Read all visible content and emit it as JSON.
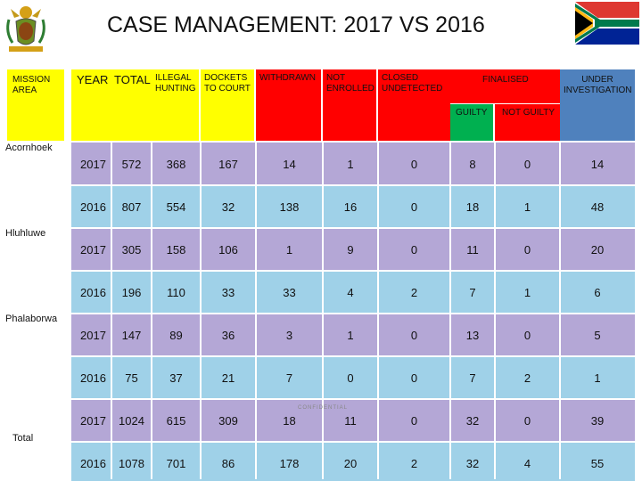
{
  "title": "CASE MANAGEMENT: 2017 VS 2016",
  "logos": {
    "crest": "south-africa-coat-of-arms",
    "flag": "south-africa-flag"
  },
  "headers": {
    "mission_area": "MISSION AREA",
    "year": "YEAR",
    "total": "TOTAL",
    "illegal_hunting": "ILLEGAL HUNTING",
    "dockets": "DOCKETS TO COURT",
    "withdrawn": "WITHDRAWN",
    "not_enrolled": "NOT ENROLLED",
    "closed": "CLOSED UNDETECTED",
    "finalised": "FINALISED",
    "guilty": "GUILTY",
    "not_guilty": "NOT GUILTY",
    "under_investigation": "UNDER INVESTIGATION"
  },
  "areas": [
    "Acornhoek",
    "Hluhluwe",
    "Phalaborwa",
    "Total"
  ],
  "rows": [
    {
      "year": "2017",
      "total": "572",
      "illegal_hunting": "368",
      "dockets": "167",
      "withdrawn": "14",
      "not_enrolled": "1",
      "closed": "0",
      "guilty": "8",
      "not_guilty": "0",
      "under_investigation": "14"
    },
    {
      "year": "2016",
      "total": "807",
      "illegal_hunting": "554",
      "dockets": "32",
      "withdrawn": "138",
      "not_enrolled": "16",
      "closed": "0",
      "guilty": "18",
      "not_guilty": "1",
      "under_investigation": "48"
    },
    {
      "year": "2017",
      "total": "305",
      "illegal_hunting": "158",
      "dockets": "106",
      "withdrawn": "1",
      "not_enrolled": "9",
      "closed": "0",
      "guilty": "11",
      "not_guilty": "0",
      "under_investigation": "20"
    },
    {
      "year": "2016",
      "total": "196",
      "illegal_hunting": "110",
      "dockets": "33",
      "withdrawn": "33",
      "not_enrolled": "4",
      "closed": "2",
      "guilty": "7",
      "not_guilty": "1",
      "under_investigation": "6"
    },
    {
      "year": "2017",
      "total": "147",
      "illegal_hunting": "89",
      "dockets": "36",
      "withdrawn": "3",
      "not_enrolled": "1",
      "closed": "0",
      "guilty": "13",
      "not_guilty": "0",
      "under_investigation": "5"
    },
    {
      "year": "2016",
      "total": "75",
      "illegal_hunting": "37",
      "dockets": "21",
      "withdrawn": "7",
      "not_enrolled": "0",
      "closed": "0",
      "guilty": "7",
      "not_guilty": "2",
      "under_investigation": "1"
    },
    {
      "year": "2017",
      "total": "1024",
      "illegal_hunting": "615",
      "dockets": "309",
      "withdrawn": "18",
      "not_enrolled": "11",
      "closed": "0",
      "guilty": "32",
      "not_guilty": "0",
      "under_investigation": "39"
    },
    {
      "year": "2016",
      "total": "1078",
      "illegal_hunting": "701",
      "dockets": "86",
      "withdrawn": "178",
      "not_enrolled": "20",
      "closed": "2",
      "guilty": "32",
      "not_guilty": "4",
      "under_investigation": "55"
    }
  ],
  "watermark": "CONFIDENTIAL"
}
